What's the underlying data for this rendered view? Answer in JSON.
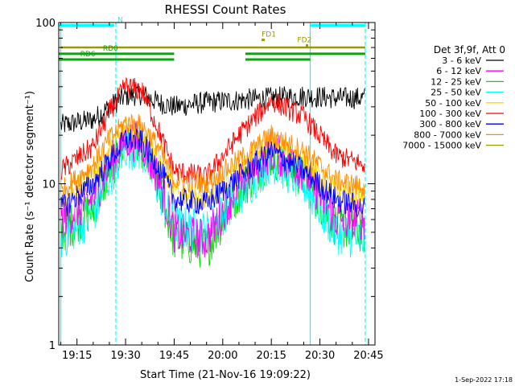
{
  "chart_data": {
    "type": "line",
    "title": "RHESSI Count Rates",
    "xlabel": "Start Time (21-Nov-16 19:09:22)",
    "ylabel": "Count Rate (s⁻¹ detector segment⁻¹)",
    "x_unit": "minutes",
    "xlim": [
      "19:09:22",
      "20:47:00"
    ],
    "ylim": [
      1,
      100
    ],
    "yscale": "log",
    "x_ticks": [
      "19:15",
      "19:30",
      "19:45",
      "20:00",
      "20:15",
      "20:30",
      "20:45"
    ],
    "y_ticks": [
      "1",
      "10",
      "100"
    ],
    "legend_title": "Det 3f,9f, Att 0",
    "legend_position": "right",
    "timestamp": "1-Sep-2022 17:18",
    "series": [
      {
        "name": "3 - 6 keV",
        "color": "#000000",
        "x": [
          "19:10",
          "19:20",
          "19:25",
          "19:30",
          "19:35",
          "19:40",
          "19:45",
          "19:55",
          "20:05",
          "20:15",
          "20:25",
          "20:35",
          "20:44"
        ],
        "values": [
          23,
          25,
          30,
          35,
          36,
          32,
          30,
          32,
          33,
          34,
          35,
          34,
          34
        ]
      },
      {
        "name": "6 - 12 keV",
        "color": "#ff00ff",
        "x": [
          "19:10",
          "19:20",
          "19:25",
          "19:30",
          "19:35",
          "19:40",
          "19:45",
          "19:55",
          "20:05",
          "20:15",
          "20:25",
          "20:35",
          "20:44"
        ],
        "values": [
          6,
          8,
          13,
          19,
          18,
          11,
          5,
          4.5,
          10,
          16,
          12,
          6,
          6
        ]
      },
      {
        "name": "12 - 25 keV",
        "color": "#00dd00",
        "x": [
          "19:10",
          "19:20",
          "19:25",
          "19:30",
          "19:35",
          "19:40",
          "19:45",
          "19:55",
          "20:05",
          "20:15",
          "20:25",
          "20:35",
          "20:44"
        ],
        "values": [
          5,
          7,
          12,
          18,
          17,
          10,
          4.5,
          4,
          9,
          15,
          11,
          5.5,
          5
        ]
      },
      {
        "name": "25 - 50 keV",
        "color": "#00ffff",
        "x": [
          "19:10",
          "19:20",
          "19:25",
          "19:30",
          "19:35",
          "19:40",
          "19:45",
          "19:55",
          "20:05",
          "20:15",
          "20:25",
          "20:35",
          "20:44"
        ],
        "values": [
          4.5,
          6.5,
          11,
          17,
          16,
          9.5,
          5.5,
          5,
          8.5,
          14,
          10,
          5,
          4.5
        ]
      },
      {
        "name": "50 - 100 keV",
        "color": "#ffd700",
        "x": [
          "19:10",
          "19:20",
          "19:25",
          "19:30",
          "19:35",
          "19:40",
          "19:45",
          "19:55",
          "20:05",
          "20:15",
          "20:25",
          "20:35",
          "20:44"
        ],
        "values": [
          8,
          11,
          16,
          22,
          21,
          15,
          9,
          8,
          12,
          18,
          14,
          9,
          8.5
        ]
      },
      {
        "name": "100 - 300 keV",
        "color": "#ff0000",
        "x": [
          "19:10",
          "19:20",
          "19:25",
          "19:30",
          "19:35",
          "19:40",
          "19:45",
          "19:55",
          "20:05",
          "20:15",
          "20:25",
          "20:35",
          "20:44"
        ],
        "values": [
          12,
          17,
          28,
          40,
          38,
          22,
          12,
          11,
          20,
          33,
          26,
          15,
          13
        ]
      },
      {
        "name": "300 - 800 keV",
        "color": "#0000ff",
        "x": [
          "19:10",
          "19:20",
          "19:25",
          "19:30",
          "19:35",
          "19:40",
          "19:45",
          "19:55",
          "20:05",
          "20:15",
          "20:25",
          "20:35",
          "20:44"
        ],
        "values": [
          7,
          10,
          14,
          19,
          18,
          13,
          8,
          7.5,
          11,
          16,
          12,
          8,
          7
        ]
      },
      {
        "name": "800 - 7000 keV",
        "color": "#ff8c00",
        "x": [
          "19:10",
          "19:20",
          "19:25",
          "19:30",
          "19:35",
          "19:40",
          "19:45",
          "19:55",
          "20:05",
          "20:15",
          "20:25",
          "20:35",
          "20:44"
        ],
        "values": [
          9,
          13,
          19,
          24,
          23,
          17,
          10.5,
          10,
          14,
          20,
          16,
          10.5,
          9.5
        ]
      },
      {
        "name": "7000 - 15000 keV",
        "color": "#999900",
        "x": [
          "19:10",
          "20:44"
        ],
        "values": [
          70,
          70
        ]
      }
    ],
    "annotations": [
      {
        "label": "N",
        "color": "#00ffff",
        "y": 96,
        "x_start": "19:09:30",
        "x_end": "19:26:30"
      },
      {
        "label": "",
        "color": "#00ffff",
        "y": 96,
        "x_start": "20:27",
        "x_end": "20:44"
      },
      {
        "label": "FD1",
        "color": "#999900",
        "y": 78,
        "x_start": "20:12",
        "x_end": "20:13",
        "text_x": "20:12"
      },
      {
        "label": "FD2",
        "color": "#999900",
        "y": 72,
        "x_start": "20:26",
        "x_end": "20:26",
        "text_x": "20:23"
      },
      {
        "label": "RD0",
        "color": "#00aa00",
        "y": 64,
        "x_start": "19:09:30",
        "x_end": "19:45",
        "text_x": "19:23"
      },
      {
        "label": "RD6",
        "color": "#00aa00",
        "y": 59,
        "x_start": "19:09:30",
        "x_end": "19:45",
        "text_x": "19:16"
      },
      {
        "label": "",
        "color": "#00aa00",
        "y": 64,
        "x_start": "20:07",
        "x_end": "20:44"
      },
      {
        "label": "",
        "color": "#00aa00",
        "y": 59,
        "x_start": "20:07",
        "x_end": "20:27"
      }
    ],
    "vertical_markers": [
      {
        "x": "19:10",
        "color": "#00ffff",
        "style": "solid"
      },
      {
        "x": "19:27",
        "color": "#00ffff",
        "style": "dashed"
      },
      {
        "x": "20:27",
        "color": "#00ffff",
        "style": "solid"
      },
      {
        "x": "20:44",
        "color": "#00ffff",
        "style": "dashed"
      }
    ]
  }
}
